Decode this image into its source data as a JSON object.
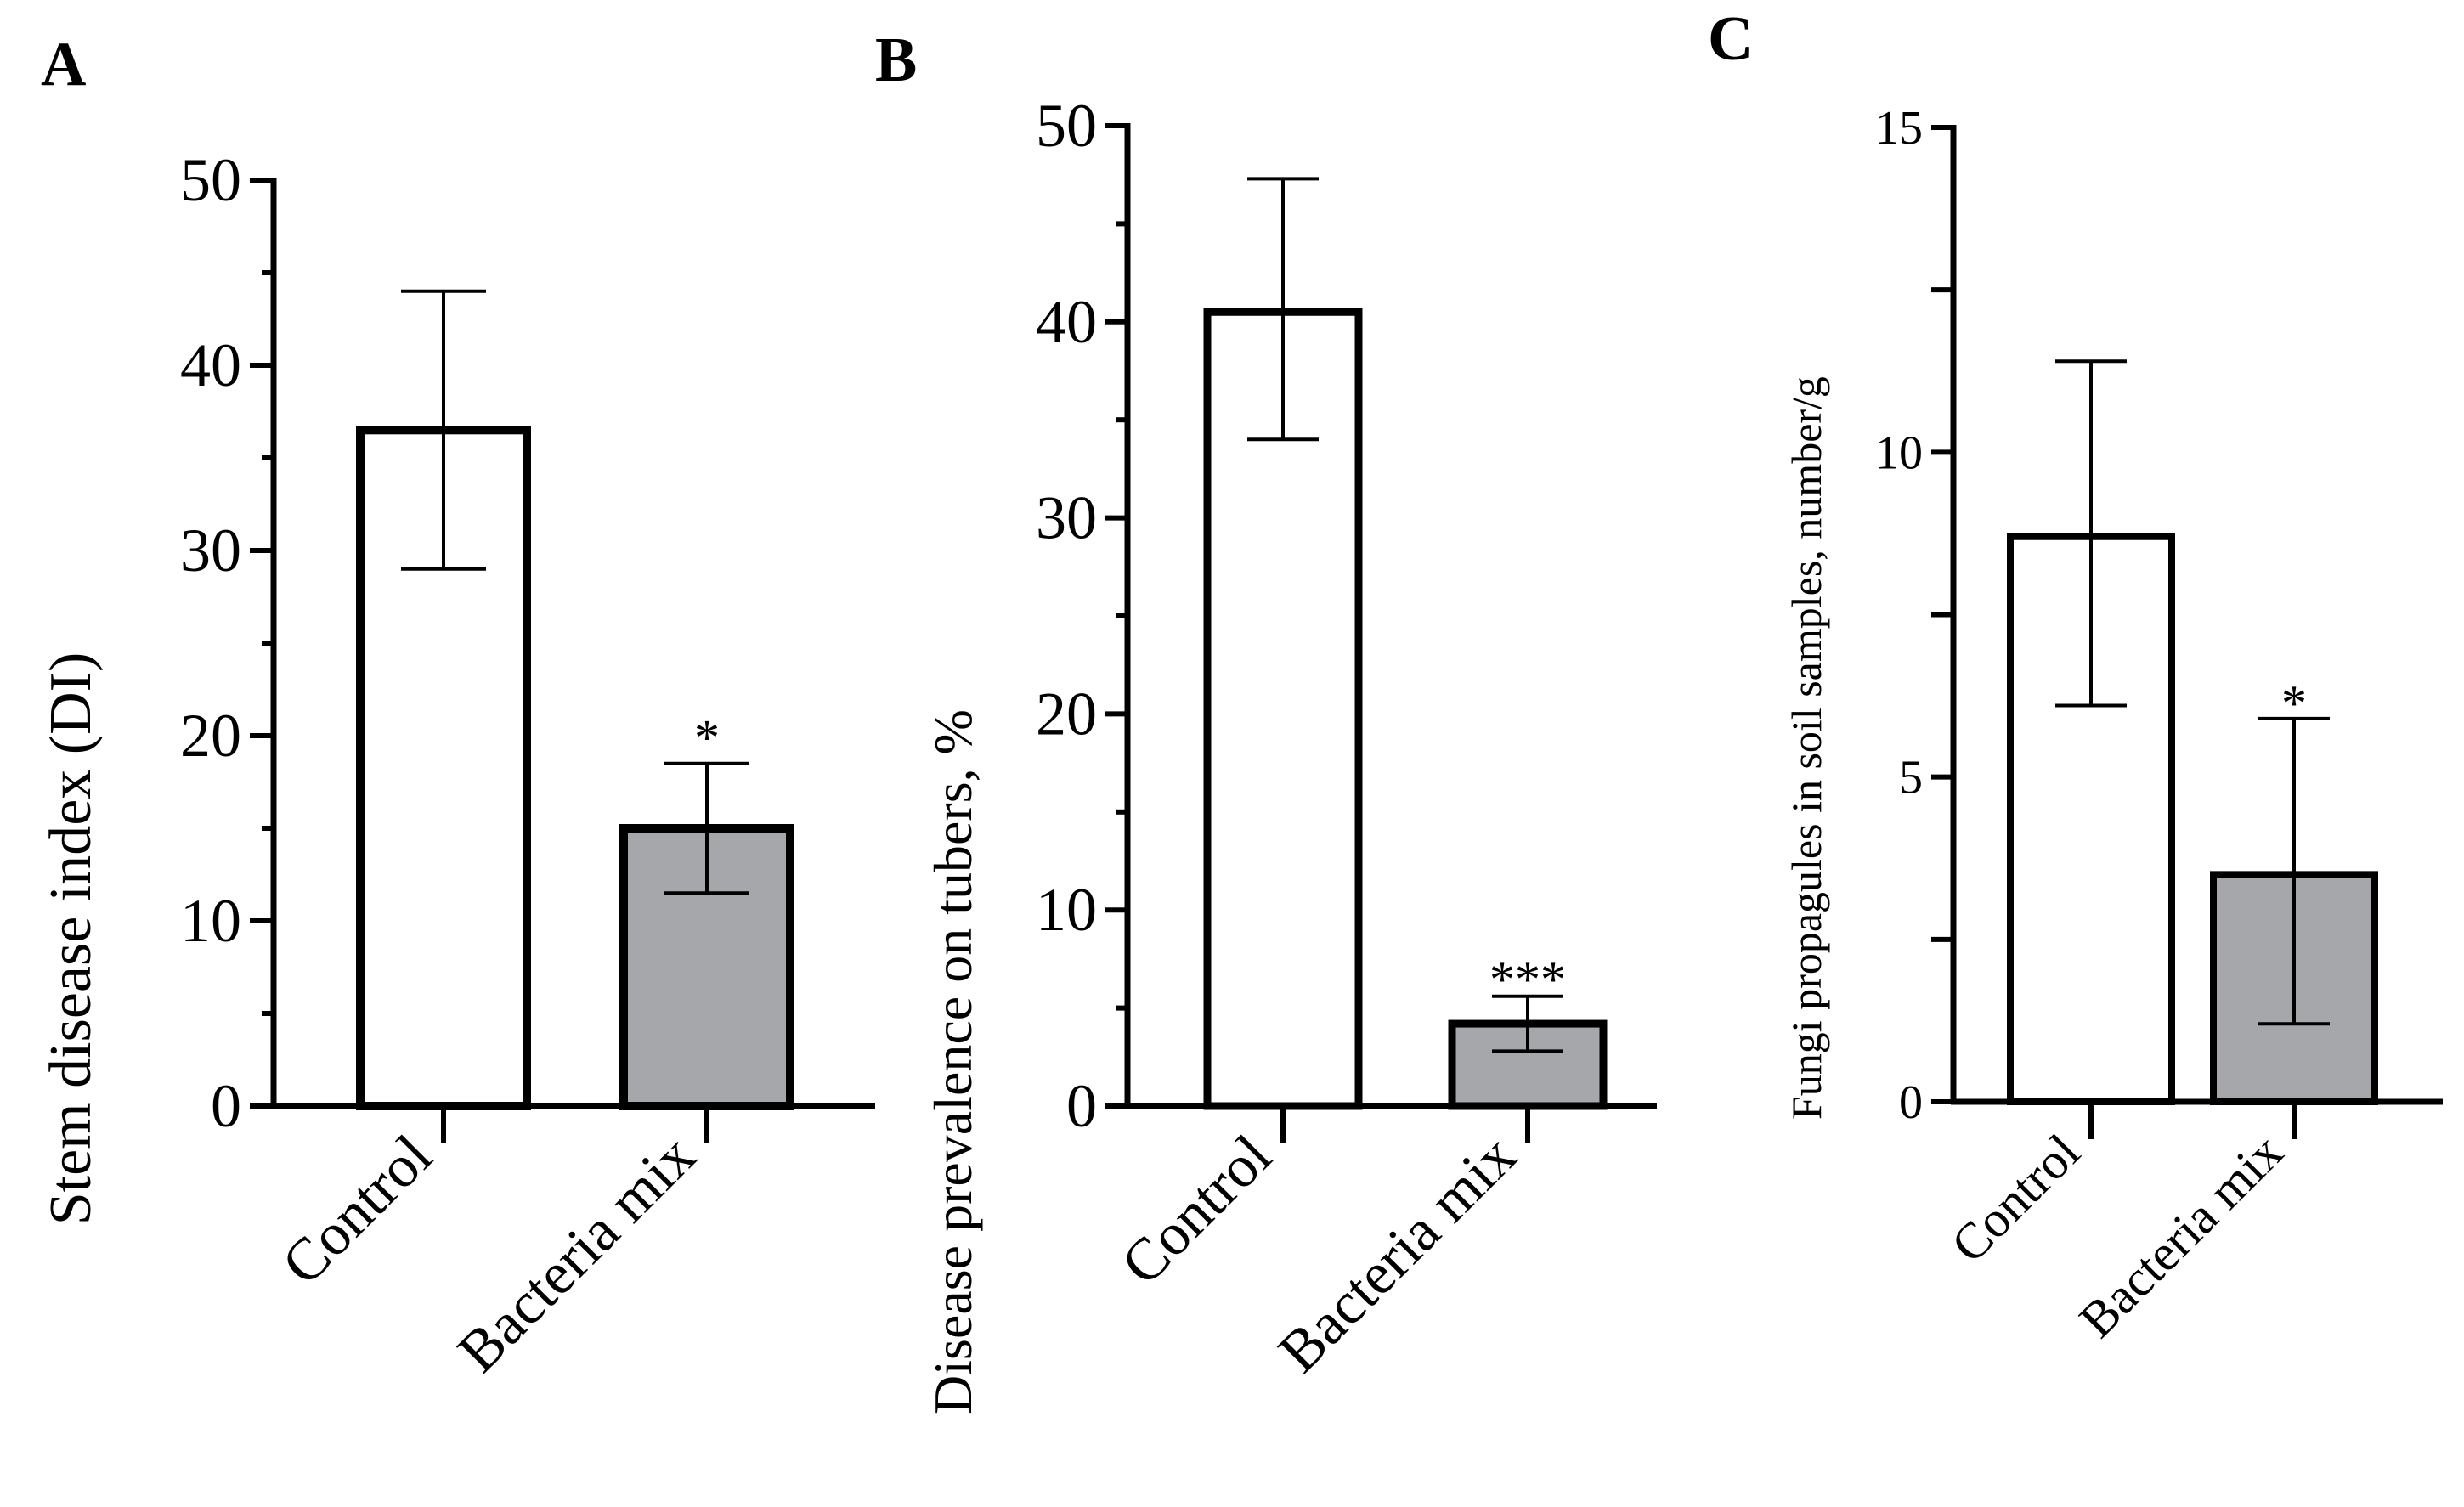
{
  "chart_data": [
    {
      "panel": "A",
      "type": "bar",
      "categories": [
        "Control",
        "Bacteria mix"
      ],
      "values": [
        36.5,
        15.0
      ],
      "error_low": [
        29.0,
        11.5
      ],
      "error_high": [
        44.0,
        18.5
      ],
      "significance": [
        "",
        "*"
      ],
      "colors": [
        "#ffffff",
        "#a6a7aa"
      ],
      "ylabel": "Stem disease index (DI)",
      "ylim": [
        0,
        50
      ],
      "yticks": [
        0,
        10,
        20,
        30,
        40,
        50
      ],
      "ytick_labels": [
        "0",
        "10",
        "20",
        "30",
        "40",
        "50"
      ]
    },
    {
      "panel": "B",
      "type": "bar",
      "categories": [
        "Control",
        "Bacteria mix"
      ],
      "values": [
        40.5,
        4.2
      ],
      "error_low": [
        34.0,
        2.8
      ],
      "error_high": [
        47.3,
        5.6
      ],
      "significance": [
        "",
        "***"
      ],
      "colors": [
        "#ffffff",
        "#a6a7aa"
      ],
      "ylabel": "Disease prevalence on tubers, %",
      "ylim": [
        0,
        50
      ],
      "yticks": [
        0,
        10,
        20,
        30,
        40,
        50
      ],
      "ytick_labels": [
        "0",
        "10",
        "20",
        "30",
        "40",
        "50"
      ]
    },
    {
      "panel": "C",
      "type": "bar",
      "categories": [
        "Control",
        "Bacteria mix"
      ],
      "values": [
        8.7,
        3.5
      ],
      "error_low": [
        6.1,
        1.2
      ],
      "error_high": [
        11.4,
        5.9
      ],
      "significance": [
        "",
        "*"
      ],
      "colors": [
        "#ffffff",
        "#a6a7aa"
      ],
      "ylabel": "Fungi propagules in soil samples, number/g",
      "ylim": [
        0,
        15
      ],
      "yticks": [
        0,
        5,
        10,
        15
      ],
      "ytick_labels": [
        "0",
        "5",
        "10",
        "15"
      ]
    }
  ]
}
